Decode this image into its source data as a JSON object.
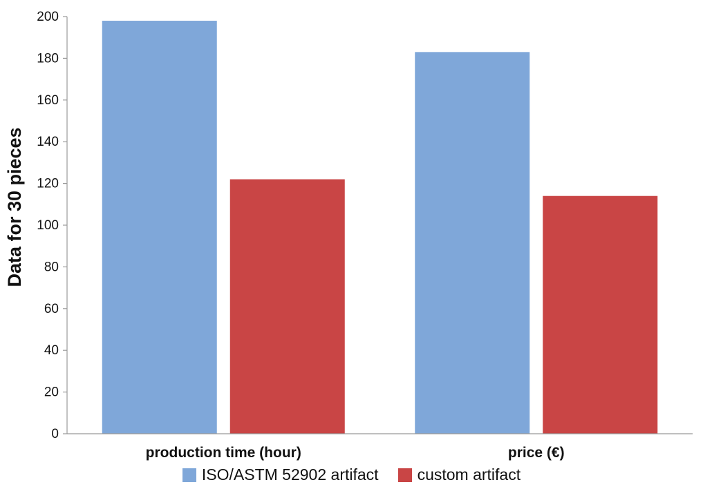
{
  "chart_data": {
    "type": "bar",
    "categories": [
      "production time (hour)",
      "price (€)"
    ],
    "series": [
      {
        "name": "ISO/ASTM 52902 artifact",
        "values": [
          198,
          183
        ],
        "color": "#7FA7D9"
      },
      {
        "name": "custom artifact",
        "values": [
          122,
          114
        ],
        "color": "#C94545"
      }
    ],
    "ylabel": "Data for 30 pieces",
    "xlabel": "",
    "ylim": [
      0,
      200
    ],
    "yticks": [
      0,
      20,
      40,
      60,
      80,
      100,
      120,
      140,
      160,
      180,
      200
    ],
    "grid": false,
    "legend_position": "bottom"
  }
}
